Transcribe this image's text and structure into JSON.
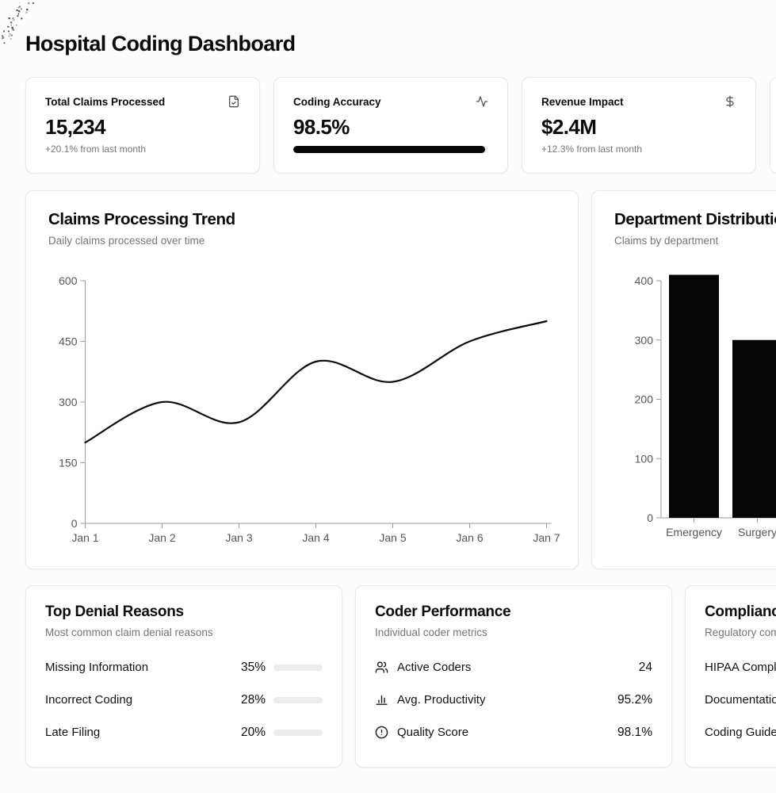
{
  "page": {
    "title": "Hospital Coding Dashboard"
  },
  "colors": {
    "text": "#0a0a0a",
    "muted": "#74747b",
    "card_border": "#e7e7e9",
    "background": "#fcfcfc",
    "accent_fill": "#050505",
    "axis": "#9a9aa0",
    "tick_text": "#55555a",
    "progress_track": "#ededed"
  },
  "stat_cards": [
    {
      "label": "Total Claims Processed",
      "icon": "file-check-icon",
      "value": "15,234",
      "sub": "+20.1% from last month"
    },
    {
      "label": "Coding Accuracy",
      "icon": "activity-icon",
      "value": "98.5%",
      "progress_pct": 98.5
    },
    {
      "label": "Revenue Impact",
      "icon": "dollar-sign-icon",
      "value": "$2.4M",
      "sub": "+12.3% from last month"
    }
  ],
  "chart_data": [
    {
      "type": "line",
      "title": "Claims Processing Trend",
      "subtitle": "Daily claims processed over time",
      "x": [
        "Jan 1",
        "Jan 2",
        "Jan 3",
        "Jan 4",
        "Jan 5",
        "Jan 6",
        "Jan 7"
      ],
      "series": [
        {
          "name": "daily claims",
          "values": [
            200,
            300,
            250,
            400,
            350,
            450,
            500
          ]
        }
      ],
      "xlabel": "",
      "ylabel": "",
      "ylim": [
        0,
        600
      ],
      "yticks": [
        0,
        150,
        300,
        450,
        600
      ],
      "grid": false,
      "legend": "none",
      "line_color": "#0b0b0b",
      "curve": "natural"
    },
    {
      "type": "bar",
      "title": "Department Distribution",
      "subtitle": "Claims by department",
      "categories": [
        "Emergency",
        "Surgery"
      ],
      "values": [
        410,
        300
      ],
      "xlabel": "",
      "ylabel": "",
      "ylim": [
        0,
        400
      ],
      "yticks": [
        0,
        100,
        200,
        300,
        400
      ],
      "grid": false,
      "legend": "none",
      "bar_color": "#050505"
    }
  ],
  "denial_card": {
    "title": "Top Denial Reasons",
    "subtitle": "Most common claim denial reasons",
    "rows": [
      {
        "label": "Missing Information",
        "value": "35%",
        "pct": 35
      },
      {
        "label": "Incorrect Coding",
        "value": "28%",
        "pct": 28
      },
      {
        "label": "Late Filing",
        "value": "20%",
        "pct": 20
      }
    ]
  },
  "coder_card": {
    "title": "Coder Performance",
    "subtitle": "Individual coder metrics",
    "rows": [
      {
        "icon": "users-icon",
        "label": "Active Coders",
        "value": "24"
      },
      {
        "icon": "bar-chart-icon",
        "label": "Avg. Productivity",
        "value": "95.2%"
      },
      {
        "icon": "alert-circle-icon",
        "label": "Quality Score",
        "value": "98.1%"
      }
    ]
  },
  "compliance_card": {
    "title": "Compliance",
    "subtitle": "Regulatory compliance status",
    "rows": [
      {
        "label": "HIPAA Compliance"
      },
      {
        "label": "Documentation"
      },
      {
        "label": "Coding Guidelines"
      }
    ]
  }
}
